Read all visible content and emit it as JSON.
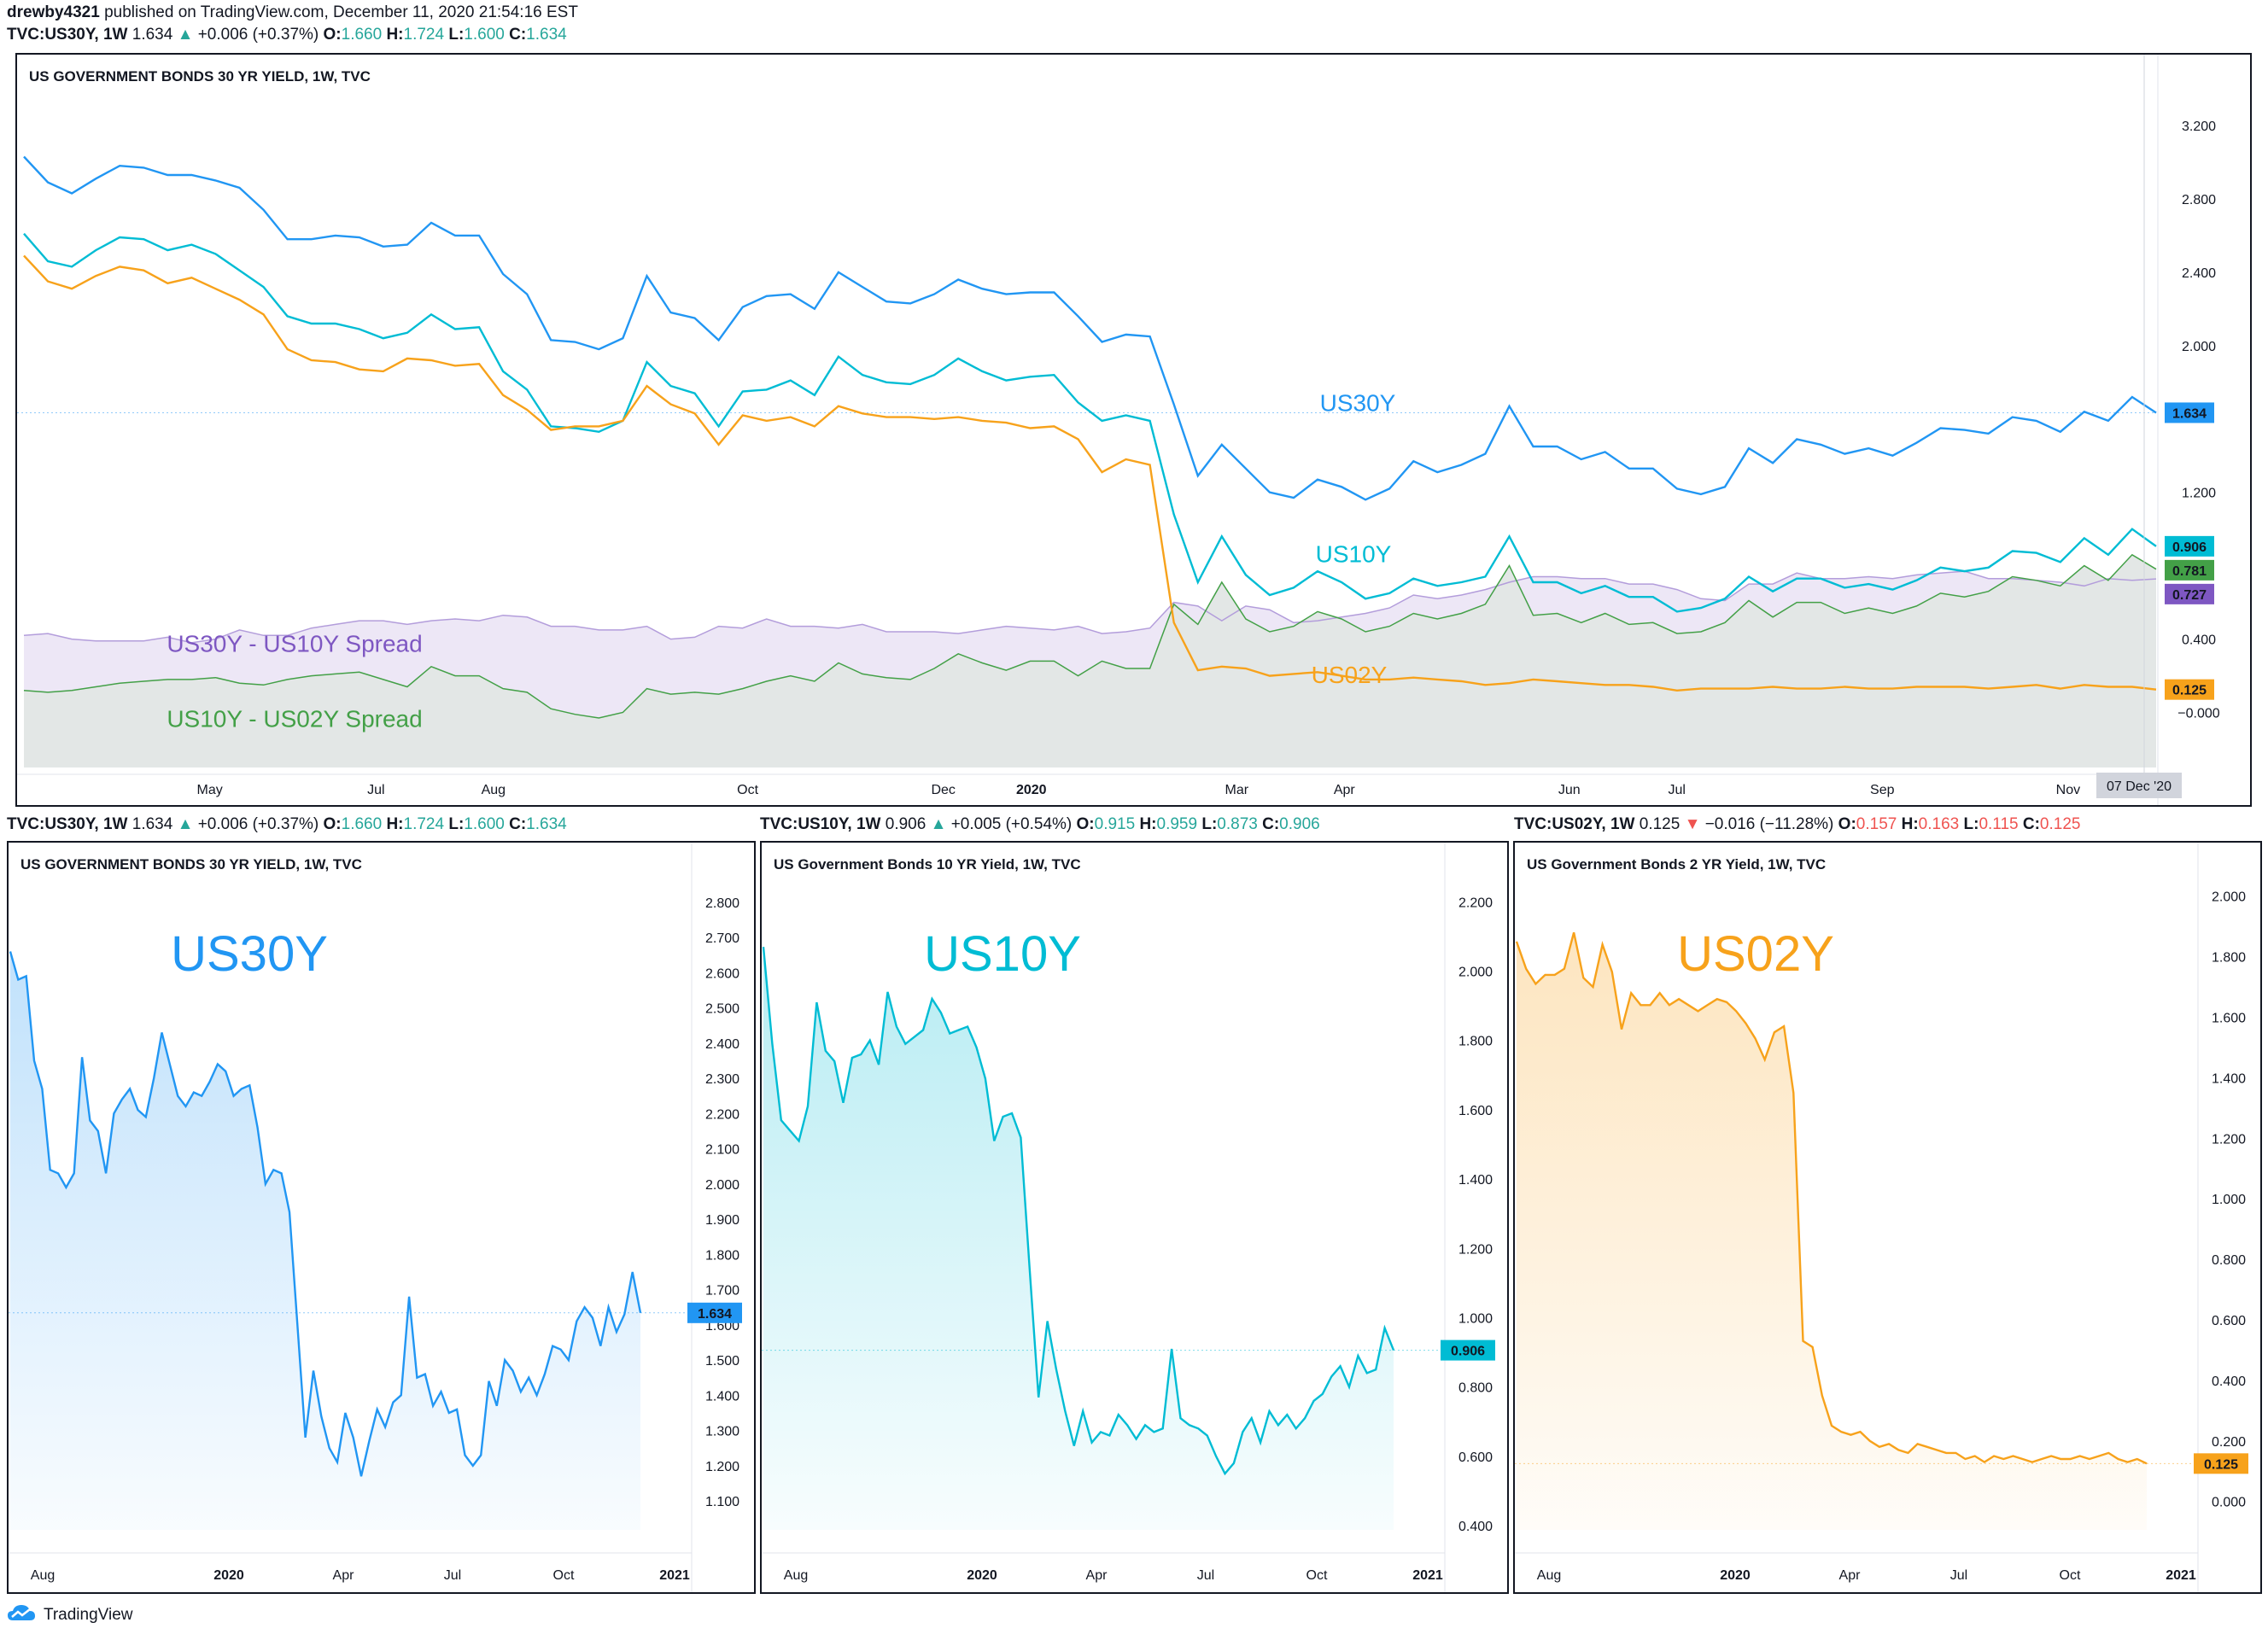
{
  "header": {
    "user": "drewby4321",
    "published": "published on TradingView.com, December 11, 2020 21:54:16 EST"
  },
  "tickers": [
    {
      "sym": "TVC:US30Y, 1W",
      "last": "1.634",
      "dir": "up",
      "chg": "+0.006 (+0.37%)",
      "o": "1.660",
      "h": "1.724",
      "l": "1.600",
      "c": "1.634"
    },
    {
      "sym": "TVC:US10Y, 1W",
      "last": "0.906",
      "dir": "up",
      "chg": "+0.005 (+0.54%)",
      "o": "0.915",
      "h": "0.959",
      "l": "0.873",
      "c": "0.906"
    },
    {
      "sym": "TVC:US02Y, 1W",
      "last": "0.125",
      "dir": "down",
      "chg": "−0.016 (−11.28%)",
      "o": "0.157",
      "h": "0.163",
      "l": "0.115",
      "c": "0.125"
    }
  ],
  "ohlc_labels": {
    "o": "O:",
    "h": "H:",
    "l": "L:",
    "c": "C:"
  },
  "colors": {
    "us30y": "#2196f3",
    "us10y": "#00bcd4",
    "us02y": "#f7a21b",
    "spread30_10": "#7e57c2",
    "spread10_02": "#43a047",
    "spread30_10_fill": "#ede7f6",
    "spread10_02_fill": "#e3e7e6"
  },
  "footer": {
    "brand": "TradingView"
  },
  "chart_data": [
    {
      "type": "line",
      "title": "US GOVERNMENT BONDS 30 YR YIELD, 1W, TVC",
      "x_ticks": [
        "May",
        "Jul",
        "Aug",
        "Oct",
        "Dec",
        "2020",
        "Mar",
        "Apr",
        "Jun",
        "Jul",
        "Sep",
        "Nov"
      ],
      "x_cursor_label": "07 Dec '20",
      "y_ticks": [
        "3.200",
        "2.800",
        "2.400",
        "2.000",
        "1.200",
        "0.400",
        "−0.000"
      ],
      "ylim": [
        -0.3,
        3.4
      ],
      "price_tags": [
        "1.634",
        "0.906",
        "0.781",
        "0.727",
        "0.125"
      ],
      "annotations": [
        "US30Y",
        "US10Y",
        "US02Y",
        "US30Y - US10Y Spread",
        "US10Y - US02Y Spread"
      ],
      "series": [
        {
          "name": "US30Y",
          "values": [
            3.03,
            2.89,
            2.83,
            2.91,
            2.98,
            2.97,
            2.93,
            2.93,
            2.9,
            2.86,
            2.74,
            2.58,
            2.58,
            2.6,
            2.59,
            2.54,
            2.55,
            2.67,
            2.6,
            2.6,
            2.39,
            2.28,
            2.03,
            2.02,
            1.98,
            2.04,
            2.38,
            2.18,
            2.15,
            2.03,
            2.21,
            2.27,
            2.28,
            2.2,
            2.4,
            2.32,
            2.24,
            2.23,
            2.28,
            2.36,
            2.31,
            2.28,
            2.29,
            2.29,
            2.16,
            2.02,
            2.06,
            2.05,
            1.68,
            1.29,
            1.46,
            1.33,
            1.2,
            1.17,
            1.27,
            1.23,
            1.16,
            1.22,
            1.37,
            1.31,
            1.35,
            1.41,
            1.67,
            1.45,
            1.45,
            1.38,
            1.42,
            1.33,
            1.33,
            1.22,
            1.19,
            1.23,
            1.44,
            1.36,
            1.49,
            1.46,
            1.41,
            1.44,
            1.4,
            1.47,
            1.55,
            1.54,
            1.52,
            1.61,
            1.59,
            1.53,
            1.64,
            1.59,
            1.72,
            1.634
          ]
        },
        {
          "name": "US10Y",
          "values": [
            2.61,
            2.46,
            2.43,
            2.52,
            2.59,
            2.58,
            2.52,
            2.55,
            2.5,
            2.41,
            2.32,
            2.16,
            2.12,
            2.12,
            2.09,
            2.04,
            2.07,
            2.17,
            2.09,
            2.1,
            1.86,
            1.76,
            1.56,
            1.55,
            1.53,
            1.59,
            1.91,
            1.78,
            1.74,
            1.56,
            1.75,
            1.76,
            1.81,
            1.73,
            1.94,
            1.84,
            1.8,
            1.79,
            1.84,
            1.93,
            1.86,
            1.81,
            1.83,
            1.84,
            1.69,
            1.59,
            1.62,
            1.59,
            1.08,
            0.71,
            0.96,
            0.75,
            0.64,
            0.68,
            0.77,
            0.71,
            0.62,
            0.65,
            0.73,
            0.69,
            0.71,
            0.74,
            0.96,
            0.71,
            0.71,
            0.65,
            0.69,
            0.63,
            0.63,
            0.55,
            0.57,
            0.62,
            0.74,
            0.66,
            0.73,
            0.73,
            0.68,
            0.7,
            0.67,
            0.72,
            0.79,
            0.77,
            0.79,
            0.88,
            0.87,
            0.82,
            0.95,
            0.86,
            1.0,
            0.906
          ]
        },
        {
          "name": "US02Y",
          "values": [
            2.49,
            2.35,
            2.31,
            2.38,
            2.43,
            2.41,
            2.34,
            2.37,
            2.31,
            2.25,
            2.17,
            1.98,
            1.92,
            1.91,
            1.87,
            1.86,
            1.93,
            1.92,
            1.89,
            1.9,
            1.73,
            1.65,
            1.54,
            1.56,
            1.56,
            1.59,
            1.78,
            1.68,
            1.63,
            1.46,
            1.62,
            1.59,
            1.61,
            1.56,
            1.67,
            1.63,
            1.61,
            1.61,
            1.6,
            1.61,
            1.59,
            1.58,
            1.55,
            1.56,
            1.49,
            1.31,
            1.38,
            1.35,
            0.49,
            0.23,
            0.25,
            0.24,
            0.2,
            0.21,
            0.22,
            0.2,
            0.18,
            0.18,
            0.19,
            0.18,
            0.17,
            0.15,
            0.16,
            0.18,
            0.17,
            0.16,
            0.15,
            0.15,
            0.14,
            0.12,
            0.13,
            0.13,
            0.13,
            0.14,
            0.13,
            0.13,
            0.14,
            0.13,
            0.13,
            0.14,
            0.14,
            0.14,
            0.13,
            0.14,
            0.15,
            0.13,
            0.15,
            0.14,
            0.14,
            0.125
          ]
        }
      ]
    },
    {
      "type": "area",
      "title": "US GOVERNMENT BONDS 30 YR YIELD, 1W, TVC",
      "big_label": "US30Y",
      "x_ticks": [
        "Aug",
        "2020",
        "Apr",
        "Jul",
        "Oct",
        "2021"
      ],
      "y_ticks": [
        "2.800",
        "2.700",
        "2.600",
        "2.500",
        "2.400",
        "2.300",
        "2.200",
        "2.100",
        "2.000",
        "1.900",
        "1.800",
        "1.700",
        "1.600",
        "1.500",
        "1.400",
        "1.300",
        "1.200",
        "1.100"
      ],
      "ylim": [
        1.03,
        2.86
      ],
      "price_tag": "1.634",
      "series": [
        {
          "name": "US30Y",
          "values": [
            2.66,
            2.58,
            2.59,
            2.35,
            2.27,
            2.04,
            2.03,
            1.99,
            2.03,
            2.36,
            2.18,
            2.15,
            2.03,
            2.2,
            2.24,
            2.27,
            2.21,
            2.19,
            2.3,
            2.43,
            2.34,
            2.25,
            2.22,
            2.26,
            2.25,
            2.29,
            2.34,
            2.32,
            2.25,
            2.27,
            2.28,
            2.16,
            2.0,
            2.04,
            2.03,
            1.92,
            1.6,
            1.28,
            1.47,
            1.34,
            1.25,
            1.21,
            1.35,
            1.28,
            1.17,
            1.27,
            1.36,
            1.31,
            1.38,
            1.4,
            1.68,
            1.45,
            1.46,
            1.37,
            1.41,
            1.35,
            1.36,
            1.23,
            1.2,
            1.23,
            1.44,
            1.37,
            1.5,
            1.47,
            1.41,
            1.45,
            1.4,
            1.46,
            1.54,
            1.53,
            1.5,
            1.61,
            1.65,
            1.62,
            1.54,
            1.65,
            1.58,
            1.63,
            1.75,
            1.634
          ]
        }
      ]
    },
    {
      "type": "area",
      "title": "US Government Bonds 10 YR Yield, 1W, TVC",
      "big_label": "US10Y",
      "x_ticks": [
        "Aug",
        "2020",
        "Apr",
        "Jul",
        "Oct",
        "2021"
      ],
      "y_ticks": [
        "2.200",
        "2.000",
        "1.800",
        "1.600",
        "1.400",
        "1.200",
        "1.000",
        "0.800",
        "0.600",
        "0.400"
      ],
      "ylim": [
        0.4,
        2.26
      ],
      "price_tag": "0.906",
      "series": [
        {
          "name": "US10Y",
          "values": [
            2.07,
            1.79,
            1.57,
            1.54,
            1.51,
            1.61,
            1.91,
            1.77,
            1.74,
            1.62,
            1.75,
            1.76,
            1.8,
            1.73,
            1.94,
            1.84,
            1.79,
            1.81,
            1.83,
            1.92,
            1.88,
            1.82,
            1.83,
            1.84,
            1.78,
            1.69,
            1.51,
            1.58,
            1.59,
            1.52,
            1.14,
            0.77,
            0.99,
            0.85,
            0.73,
            0.63,
            0.73,
            0.64,
            0.67,
            0.66,
            0.72,
            0.69,
            0.65,
            0.69,
            0.67,
            0.68,
            0.91,
            0.71,
            0.69,
            0.68,
            0.66,
            0.6,
            0.55,
            0.58,
            0.67,
            0.71,
            0.64,
            0.73,
            0.69,
            0.72,
            0.68,
            0.71,
            0.76,
            0.78,
            0.83,
            0.86,
            0.8,
            0.89,
            0.84,
            0.85,
            0.97,
            0.906
          ]
        }
      ]
    },
    {
      "type": "area",
      "title": "US Government Bonds 2 YR Yield, 1W, TVC",
      "big_label": "US02Y",
      "x_ticks": [
        "Aug",
        "2020",
        "Apr",
        "Jul",
        "Oct",
        "2021"
      ],
      "y_ticks": [
        "2.000",
        "1.800",
        "1.600",
        "1.400",
        "1.200",
        "1.000",
        "0.800",
        "0.600",
        "0.400",
        "0.200",
        "0.000"
      ],
      "ylim": [
        -0.08,
        2.05
      ],
      "price_tag": "0.125",
      "series": [
        {
          "name": "US02Y",
          "values": [
            1.85,
            1.76,
            1.71,
            1.74,
            1.74,
            1.76,
            1.88,
            1.73,
            1.7,
            1.84,
            1.75,
            1.56,
            1.68,
            1.64,
            1.64,
            1.68,
            1.64,
            1.66,
            1.64,
            1.62,
            1.64,
            1.66,
            1.65,
            1.62,
            1.58,
            1.53,
            1.46,
            1.55,
            1.57,
            1.35,
            0.53,
            0.51,
            0.35,
            0.25,
            0.23,
            0.22,
            0.23,
            0.2,
            0.18,
            0.19,
            0.17,
            0.16,
            0.19,
            0.18,
            0.17,
            0.16,
            0.16,
            0.14,
            0.15,
            0.13,
            0.15,
            0.14,
            0.15,
            0.14,
            0.13,
            0.14,
            0.15,
            0.14,
            0.14,
            0.15,
            0.14,
            0.15,
            0.16,
            0.14,
            0.13,
            0.14,
            0.125
          ]
        }
      ]
    }
  ]
}
